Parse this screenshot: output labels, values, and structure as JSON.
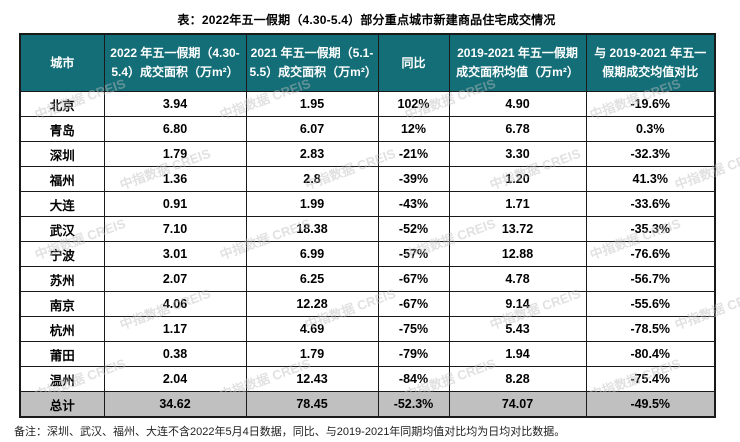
{
  "chart_data": {
    "type": "table",
    "title": "表：2022年五一假期（4.30-5.4）部分重点城市新建商品住宅成交情况",
    "columns": [
      "城市",
      "2022 年五一假期（4.30-5.4）成交面积（万m²）",
      "2021 年五一假期（5.1-5.5）成交面积（万m²）",
      "同比",
      "2019-2021 年五一假期成交面积均值（万m²）",
      "与 2019-2021 年五一假期成交均值对比"
    ],
    "rows": [
      [
        "北京",
        "3.94",
        "1.95",
        "102%",
        "4.90",
        "-19.6%"
      ],
      [
        "青岛",
        "6.80",
        "6.07",
        "12%",
        "6.78",
        "0.3%"
      ],
      [
        "深圳",
        "1.79",
        "2.83",
        "-21%",
        "3.30",
        "-32.3%"
      ],
      [
        "福州",
        "1.36",
        "2.8",
        "-39%",
        "1.20",
        "41.3%"
      ],
      [
        "大连",
        "0.91",
        "1.99",
        "-43%",
        "1.71",
        "-33.6%"
      ],
      [
        "武汉",
        "7.10",
        "18.38",
        "-52%",
        "13.72",
        "-35.3%"
      ],
      [
        "宁波",
        "3.01",
        "6.99",
        "-57%",
        "12.88",
        "-76.6%"
      ],
      [
        "苏州",
        "2.07",
        "6.25",
        "-67%",
        "4.78",
        "-56.7%"
      ],
      [
        "南京",
        "4.06",
        "12.28",
        "-67%",
        "9.14",
        "-55.6%"
      ],
      [
        "杭州",
        "1.17",
        "4.69",
        "-75%",
        "5.43",
        "-78.5%"
      ],
      [
        "莆田",
        "0.38",
        "1.79",
        "-79%",
        "1.94",
        "-80.4%"
      ],
      [
        "温州",
        "2.04",
        "12.43",
        "-84%",
        "8.28",
        "-75.4%"
      ]
    ],
    "total_row": [
      "总计",
      "34.62",
      "78.45",
      "-52.3%",
      "74.07",
      "-49.5%"
    ],
    "note": "备注：深圳、武汉、福州、大连不含2022年5月4日数据，同比、与2019-2021年同期均值对比均为日均对比数据。"
  },
  "watermark": {
    "text": "中指数据 CREIS"
  },
  "colors": {
    "header_bg": "#146E78",
    "header_text": "#FFFFFF",
    "total_bg": "#C0C0C0",
    "border": "#1A1A1A",
    "watermark": "#BEBEBE"
  }
}
